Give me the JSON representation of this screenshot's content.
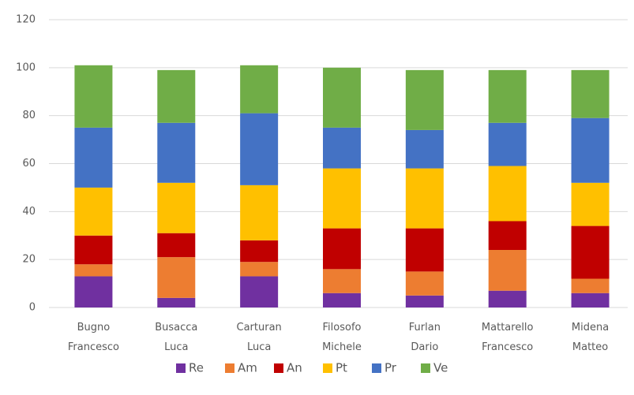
{
  "chart_data": {
    "type": "stacked_bar",
    "categories": [
      "Bugno Francesco",
      "Busacca Luca",
      "Carturan Luca",
      "Filosofo Michele",
      "Furlan Dario",
      "Mattarello Francesco",
      "Midena Matteo"
    ],
    "series": [
      {
        "name": "Re",
        "color": "#7030a0",
        "values": [
          13,
          4,
          13,
          6,
          5,
          7,
          6
        ]
      },
      {
        "name": "Am",
        "color": "#ed7d31",
        "values": [
          5,
          17,
          6,
          10,
          10,
          17,
          6
        ]
      },
      {
        "name": "An",
        "color": "#c00000",
        "values": [
          12,
          10,
          9,
          17,
          18,
          12,
          22
        ]
      },
      {
        "name": "Pt",
        "color": "#ffc000",
        "values": [
          20,
          21,
          23,
          25,
          25,
          23,
          18
        ]
      },
      {
        "name": "Pr",
        "color": "#4472c4",
        "values": [
          25,
          25,
          30,
          17,
          16,
          18,
          27
        ]
      },
      {
        "name": "Ve",
        "color": "#70ad47",
        "values": [
          26,
          22,
          20,
          25,
          25,
          22,
          20
        ]
      }
    ],
    "ylim": [
      0,
      120
    ],
    "yticks": [
      0,
      20,
      40,
      60,
      80,
      100,
      120
    ],
    "grid": true,
    "legend": "bottom"
  }
}
